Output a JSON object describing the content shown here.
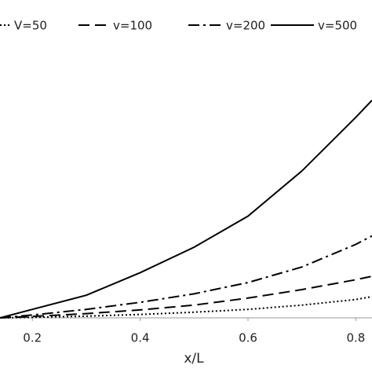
{
  "chart_data": {
    "type": "line",
    "xlabel": "x/L",
    "x": [
      0.14,
      0.2,
      0.3,
      0.4,
      0.5,
      0.6,
      0.7,
      0.8,
      0.83
    ],
    "series": [
      {
        "name": "V=50",
        "color": "#000000",
        "dash": "2,3",
        "values": [
          0,
          0.002,
          0.006,
          0.012,
          0.02,
          0.03,
          0.045,
          0.065,
          0.075
        ]
      },
      {
        "name": "v=100",
        "color": "#000000",
        "dash": "14,7",
        "values": [
          0,
          0.005,
          0.015,
          0.028,
          0.045,
          0.07,
          0.1,
          0.135,
          0.147
        ]
      },
      {
        "name": "v=200",
        "color": "#000000",
        "dash": "14,5,3,5",
        "values": [
          0,
          0.01,
          0.03,
          0.055,
          0.085,
          0.125,
          0.18,
          0.26,
          0.29
        ]
      },
      {
        "name": "v=500",
        "color": "#000000",
        "dash": "none",
        "values": [
          0,
          0.03,
          0.08,
          0.16,
          0.25,
          0.36,
          0.52,
          0.71,
          0.77
        ]
      }
    ],
    "xlim": [
      0.14,
      0.83
    ],
    "ylim": [
      0,
      1
    ],
    "xticks": [
      0.2,
      0.4,
      0.6,
      0.8
    ]
  }
}
